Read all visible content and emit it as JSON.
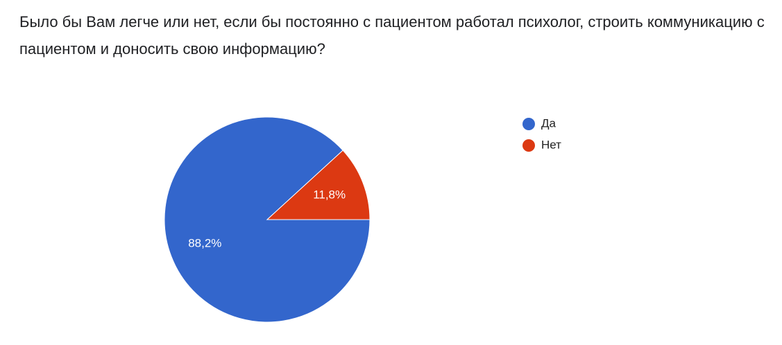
{
  "chart_data": {
    "type": "pie",
    "title": "Было бы Вам легче или нет, если бы постоянно с пациентом работал психолог, строить коммуникацию с пациентом и доносить свою информацию?",
    "categories": [
      "Да",
      "Нет"
    ],
    "values": [
      88.2,
      11.8
    ],
    "value_labels": [
      "88,2%",
      "11,8%"
    ],
    "colors": [
      "#3366cc",
      "#dc3912"
    ],
    "legend": "right"
  }
}
